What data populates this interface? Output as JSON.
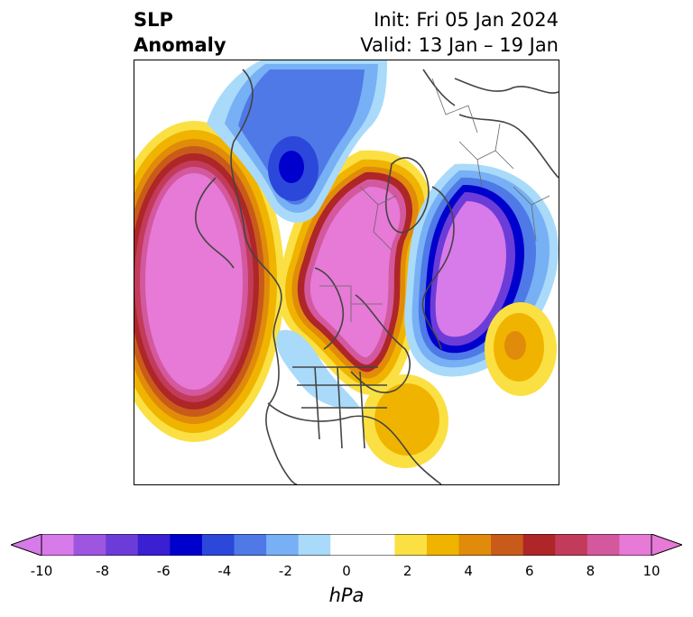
{
  "title": {
    "variable_line1": "SLP",
    "variable_line2": "Anomaly",
    "init": "Init: Fri 05 Jan 2024",
    "valid": "Valid: 13 Jan – 19 Jan"
  },
  "colors": {
    "positive": [
      "#fbe043",
      "#f0b400",
      "#e18b0a",
      "#c85b19",
      "#ae2628",
      "#c23b5a",
      "#d4589e",
      "#e67ad6"
    ],
    "negative": [
      "#d77aea",
      "#9e56e0",
      "#6c3cd9",
      "#3a1fd3",
      "#0000cd",
      "#2b48db",
      "#4f79e7",
      "#77b0f4",
      "#a9dafa"
    ],
    "neutral": "#ffffff",
    "coastline": "#444444"
  },
  "colorbar": {
    "units": "hPa",
    "ticks": [
      "-10",
      "-8",
      "-6",
      "-4",
      "-2",
      "0",
      "2",
      "4",
      "6",
      "8",
      "10"
    ],
    "bins": [
      "#d77aea",
      "#9e56e0",
      "#6c3cd9",
      "#3a1fd3",
      "#0000cd",
      "#2b48db",
      "#4f79e7",
      "#77b0f4",
      "#a9dafa",
      "#ffffff",
      "#ffffff",
      "#fbe043",
      "#f0b400",
      "#e18b0a",
      "#c85b19",
      "#ae2628",
      "#c23b5a",
      "#d4589e",
      "#e67ad6"
    ],
    "min_color": "#d77aea",
    "max_color": "#e67ad6"
  },
  "map": {
    "projection": "north-polar-stereographic",
    "region": "North America / North Pacific / North Atlantic",
    "anomaly_centers": [
      {
        "sign": "positive",
        "location": "North Pacific / Gulf of Alaska",
        "peak_hPa": 10
      },
      {
        "sign": "positive",
        "location": "Arctic / Greenland – Canadian Archipelago",
        "peak_hPa": 10
      },
      {
        "sign": "negative",
        "location": "North Atlantic / Western Europe",
        "peak_hPa": -10
      },
      {
        "sign": "negative",
        "location": "Siberia / Central Asia",
        "peak_hPa": -7
      },
      {
        "sign": "positive",
        "location": "Western Atlantic off Southeast US",
        "peak_hPa": 3
      },
      {
        "sign": "positive",
        "location": "Subtropical East Atlantic",
        "peak_hPa": 4
      }
    ]
  }
}
